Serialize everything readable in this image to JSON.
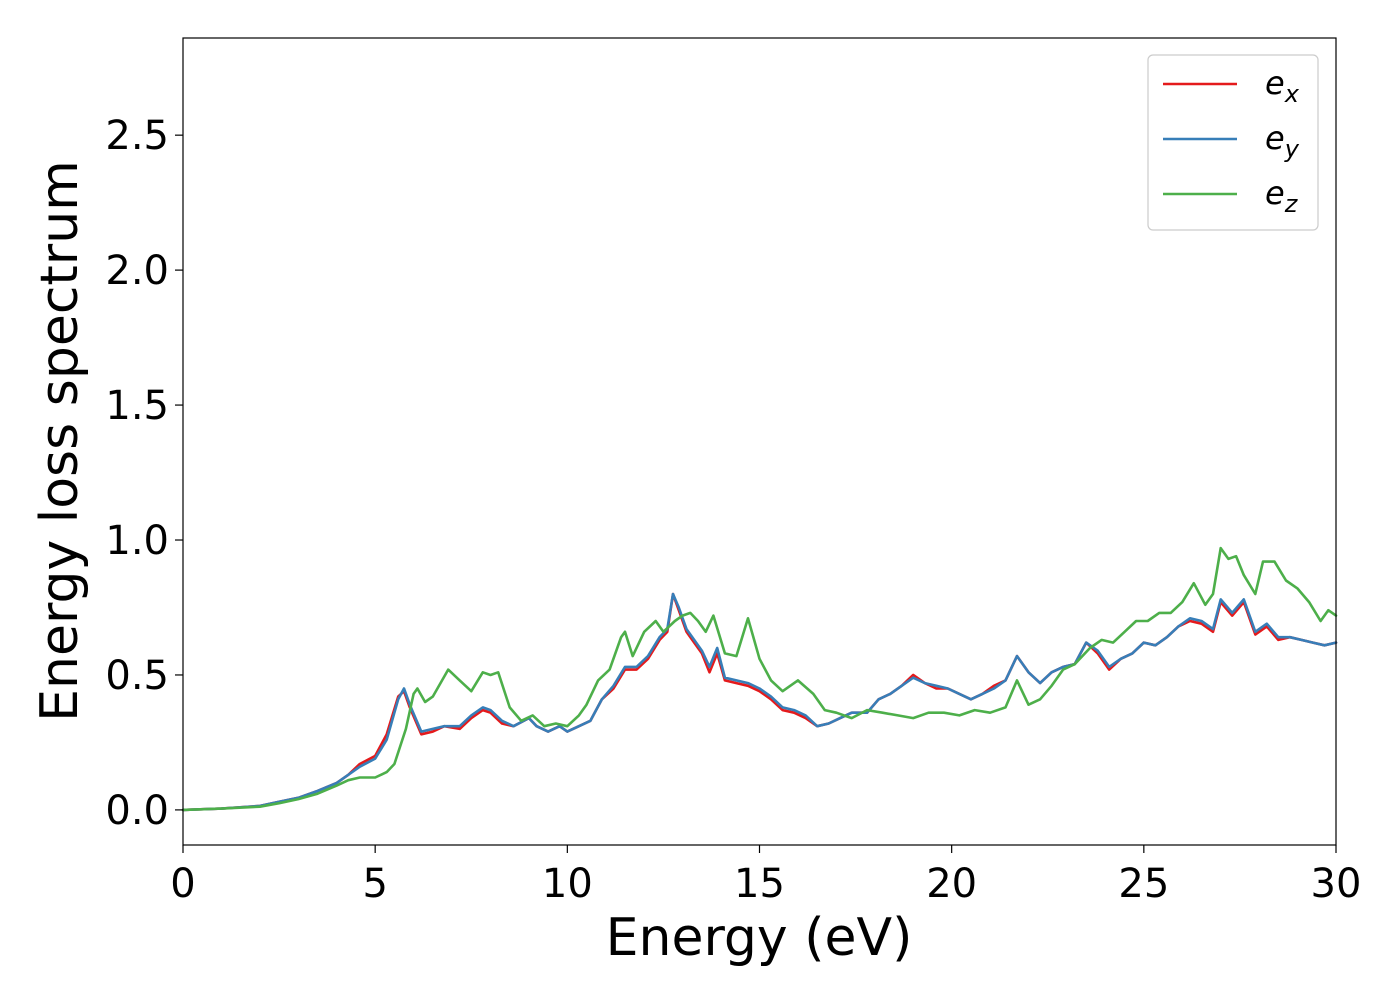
{
  "chart_data": {
    "type": "line",
    "title": "",
    "xlabel": "Energy (eV)",
    "ylabel": "Energy loss spectrum",
    "xlim": [
      0,
      30
    ],
    "ylim": [
      -0.13,
      2.86
    ],
    "xticks": [
      0,
      5,
      10,
      15,
      20,
      25,
      30
    ],
    "xtick_labels": [
      "0",
      "5",
      "10",
      "15",
      "20",
      "25",
      "30"
    ],
    "yticks": [
      0.0,
      0.5,
      1.0,
      1.5,
      2.0,
      2.5
    ],
    "ytick_labels": [
      "0.0",
      "0.5",
      "1.0",
      "1.5",
      "2.0",
      "2.5"
    ],
    "grid": false,
    "legend_position": "top-right",
    "legend": [
      {
        "base": "e",
        "sub": "x",
        "color": "#e41a1c"
      },
      {
        "base": "e",
        "sub": "y",
        "color": "#377eb8"
      },
      {
        "base": "e",
        "sub": "z",
        "color": "#4daf4a"
      }
    ],
    "series": [
      {
        "name": "e_x",
        "color": "#e41a1c",
        "x": [
          0,
          1,
          2,
          2.5,
          3,
          3.5,
          4,
          4.3,
          4.6,
          5,
          5.3,
          5.6,
          5.75,
          5.9,
          6.2,
          6.5,
          6.8,
          7.2,
          7.5,
          7.8,
          8.0,
          8.3,
          8.6,
          9.0,
          9.2,
          9.5,
          9.8,
          10.0,
          10.3,
          10.6,
          10.9,
          11.2,
          11.5,
          11.8,
          12.1,
          12.4,
          12.6,
          12.75,
          12.9,
          13.1,
          13.3,
          13.5,
          13.7,
          13.9,
          14.1,
          14.4,
          14.7,
          15.0,
          15.3,
          15.6,
          15.9,
          16.2,
          16.5,
          16.8,
          17.1,
          17.4,
          17.8,
          18.1,
          18.4,
          18.7,
          19.0,
          19.3,
          19.6,
          19.9,
          20.2,
          20.5,
          20.8,
          21.1,
          21.4,
          21.7,
          22.0,
          22.3,
          22.6,
          22.9,
          23.2,
          23.5,
          23.8,
          24.1,
          24.4,
          24.7,
          25.0,
          25.3,
          25.6,
          25.9,
          26.2,
          26.5,
          26.8,
          27.0,
          27.3,
          27.6,
          27.9,
          28.2,
          28.5,
          28.8,
          29.1,
          29.4,
          29.7,
          30.0
        ],
        "y": [
          0,
          0.005,
          0.015,
          0.03,
          0.045,
          0.07,
          0.1,
          0.13,
          0.17,
          0.2,
          0.28,
          0.42,
          0.44,
          0.38,
          0.28,
          0.29,
          0.31,
          0.3,
          0.34,
          0.37,
          0.36,
          0.32,
          0.31,
          0.34,
          0.31,
          0.29,
          0.31,
          0.29,
          0.31,
          0.33,
          0.41,
          0.45,
          0.52,
          0.52,
          0.56,
          0.63,
          0.66,
          0.8,
          0.74,
          0.66,
          0.62,
          0.58,
          0.51,
          0.58,
          0.48,
          0.47,
          0.46,
          0.44,
          0.41,
          0.37,
          0.36,
          0.34,
          0.31,
          0.32,
          0.34,
          0.36,
          0.36,
          0.41,
          0.43,
          0.46,
          0.5,
          0.47,
          0.45,
          0.45,
          0.43,
          0.41,
          0.43,
          0.46,
          0.48,
          0.57,
          0.51,
          0.47,
          0.51,
          0.53,
          0.54,
          0.62,
          0.58,
          0.52,
          0.56,
          0.58,
          0.62,
          0.61,
          0.64,
          0.68,
          0.7,
          0.69,
          0.66,
          0.77,
          0.72,
          0.77,
          0.65,
          0.68,
          0.63,
          0.64,
          0.63,
          0.62,
          0.61,
          0.62
        ]
      },
      {
        "name": "e_y",
        "color": "#377eb8",
        "x": [
          0,
          1,
          2,
          2.5,
          3,
          3.5,
          4,
          4.3,
          4.6,
          5,
          5.3,
          5.6,
          5.75,
          5.9,
          6.2,
          6.5,
          6.8,
          7.2,
          7.5,
          7.8,
          8.0,
          8.3,
          8.6,
          9.0,
          9.2,
          9.5,
          9.8,
          10.0,
          10.3,
          10.6,
          10.9,
          11.2,
          11.5,
          11.8,
          12.1,
          12.4,
          12.6,
          12.75,
          12.9,
          13.1,
          13.3,
          13.5,
          13.7,
          13.9,
          14.1,
          14.4,
          14.7,
          15.0,
          15.3,
          15.6,
          15.9,
          16.2,
          16.5,
          16.8,
          17.1,
          17.4,
          17.8,
          18.1,
          18.4,
          18.7,
          19.0,
          19.3,
          19.6,
          19.9,
          20.2,
          20.5,
          20.8,
          21.1,
          21.4,
          21.7,
          22.0,
          22.3,
          22.6,
          22.9,
          23.2,
          23.5,
          23.8,
          24.1,
          24.4,
          24.7,
          25.0,
          25.3,
          25.6,
          25.9,
          26.2,
          26.5,
          26.8,
          27.0,
          27.3,
          27.6,
          27.9,
          28.2,
          28.5,
          28.8,
          29.1,
          29.4,
          29.7,
          30.0
        ],
        "y": [
          0,
          0.005,
          0.015,
          0.03,
          0.045,
          0.07,
          0.1,
          0.13,
          0.16,
          0.19,
          0.26,
          0.41,
          0.45,
          0.39,
          0.29,
          0.3,
          0.31,
          0.31,
          0.35,
          0.38,
          0.37,
          0.33,
          0.31,
          0.34,
          0.31,
          0.29,
          0.31,
          0.29,
          0.31,
          0.33,
          0.41,
          0.46,
          0.53,
          0.53,
          0.57,
          0.64,
          0.67,
          0.8,
          0.75,
          0.67,
          0.63,
          0.59,
          0.53,
          0.6,
          0.49,
          0.48,
          0.47,
          0.45,
          0.42,
          0.38,
          0.37,
          0.35,
          0.31,
          0.32,
          0.34,
          0.36,
          0.36,
          0.41,
          0.43,
          0.46,
          0.49,
          0.47,
          0.46,
          0.45,
          0.43,
          0.41,
          0.43,
          0.45,
          0.48,
          0.57,
          0.51,
          0.47,
          0.51,
          0.53,
          0.54,
          0.62,
          0.59,
          0.53,
          0.56,
          0.58,
          0.62,
          0.61,
          0.64,
          0.68,
          0.71,
          0.7,
          0.67,
          0.78,
          0.73,
          0.78,
          0.66,
          0.69,
          0.64,
          0.64,
          0.63,
          0.62,
          0.61,
          0.62
        ]
      },
      {
        "name": "e_z",
        "color": "#4daf4a",
        "x": [
          0,
          1,
          2,
          2.5,
          3,
          3.5,
          4,
          4.3,
          4.6,
          5,
          5.3,
          5.5,
          5.8,
          6.0,
          6.1,
          6.3,
          6.5,
          6.9,
          7.2,
          7.5,
          7.8,
          8.0,
          8.2,
          8.5,
          8.8,
          9.1,
          9.4,
          9.7,
          10.0,
          10.3,
          10.5,
          10.8,
          11.1,
          11.4,
          11.5,
          11.7,
          12.0,
          12.3,
          12.5,
          12.8,
          13.0,
          13.2,
          13.4,
          13.6,
          13.8,
          14.1,
          14.4,
          14.7,
          15.0,
          15.3,
          15.6,
          16.0,
          16.4,
          16.7,
          17.0,
          17.4,
          17.8,
          18.2,
          18.6,
          19.0,
          19.4,
          19.8,
          20.2,
          20.6,
          21.0,
          21.4,
          21.7,
          22.0,
          22.3,
          22.6,
          22.9,
          23.2,
          23.6,
          23.9,
          24.2,
          24.5,
          24.8,
          25.1,
          25.4,
          25.7,
          26.0,
          26.3,
          26.6,
          26.8,
          27.0,
          27.2,
          27.4,
          27.6,
          27.9,
          28.1,
          28.4,
          28.7,
          29.0,
          29.3,
          29.6,
          29.8,
          30.0
        ],
        "y": [
          0,
          0.005,
          0.012,
          0.025,
          0.04,
          0.06,
          0.09,
          0.11,
          0.12,
          0.12,
          0.14,
          0.17,
          0.3,
          0.43,
          0.45,
          0.4,
          0.42,
          0.52,
          0.48,
          0.44,
          0.51,
          0.5,
          0.51,
          0.38,
          0.33,
          0.35,
          0.31,
          0.32,
          0.31,
          0.35,
          0.39,
          0.48,
          0.52,
          0.64,
          0.66,
          0.57,
          0.66,
          0.7,
          0.66,
          0.7,
          0.72,
          0.73,
          0.7,
          0.66,
          0.72,
          0.58,
          0.57,
          0.71,
          0.56,
          0.48,
          0.44,
          0.48,
          0.43,
          0.37,
          0.36,
          0.34,
          0.37,
          0.36,
          0.35,
          0.34,
          0.36,
          0.36,
          0.35,
          0.37,
          0.36,
          0.38,
          0.48,
          0.39,
          0.41,
          0.46,
          0.52,
          0.54,
          0.6,
          0.63,
          0.62,
          0.66,
          0.7,
          0.7,
          0.73,
          0.73,
          0.77,
          0.84,
          0.76,
          0.8,
          0.97,
          0.93,
          0.94,
          0.87,
          0.8,
          0.92,
          0.92,
          0.85,
          0.82,
          0.77,
          0.7,
          0.74,
          0.72
        ]
      }
    ]
  }
}
